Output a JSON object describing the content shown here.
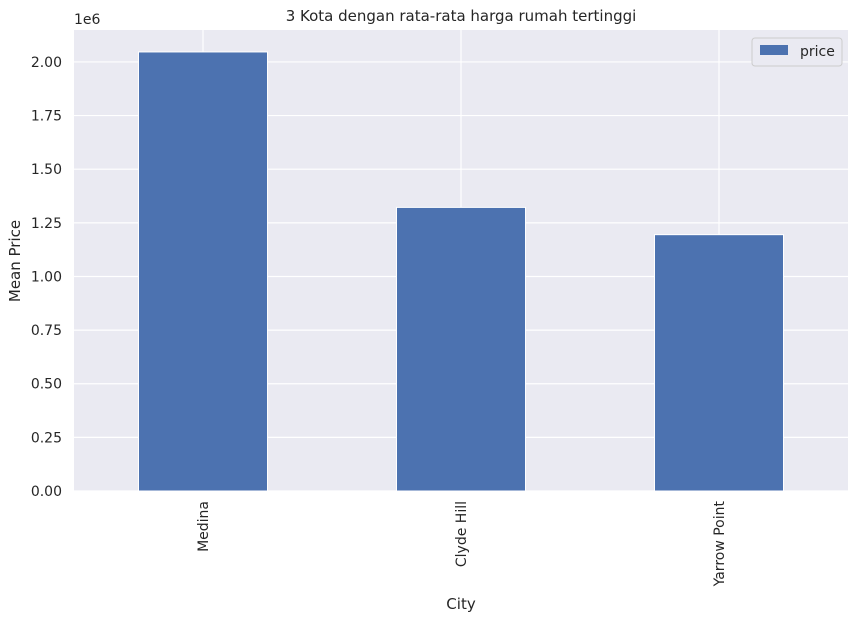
{
  "chart_data": {
    "type": "bar",
    "title": "3 Kota dengan rata-rata harga rumah tertinggi",
    "xlabel": "City",
    "ylabel": "Mean Price",
    "y_offset_text": "1e6",
    "categories": [
      "Medina",
      "Clyde Hill",
      "Yarrow Point"
    ],
    "series": [
      {
        "name": "price",
        "values": [
          2046559,
          1321945,
          1194838
        ]
      }
    ],
    "ylim": [
      0,
      2148887
    ],
    "yticks": [
      0,
      250000,
      500000,
      750000,
      1000000,
      1250000,
      1500000,
      1750000,
      2000000
    ],
    "ytick_labels": [
      "0.00",
      "0.25",
      "0.50",
      "0.75",
      "1.00",
      "1.25",
      "1.50",
      "1.75",
      "2.00"
    ],
    "grid": true,
    "legend_position": "top-right",
    "colors": {
      "bar": "#4c72b0",
      "plot_background": "#eaeaf2",
      "grid": "#ffffff",
      "text": "#262626"
    }
  }
}
